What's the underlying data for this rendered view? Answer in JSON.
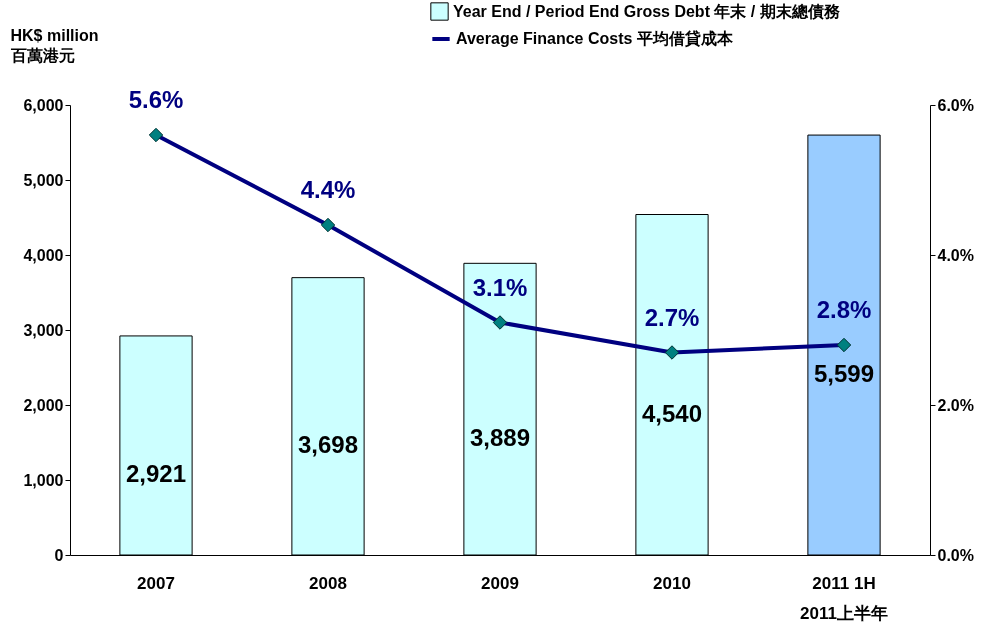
{
  "chart_data": {
    "type": "bar",
    "categories": [
      "2007",
      "2008",
      "2009",
      "2010",
      "2011 1H\n2011上半年"
    ],
    "ylabel": "HK$ million\n百萬港元",
    "ylim": [
      0,
      6000
    ],
    "yticks": [
      {
        "value": 0,
        "label": "0"
      },
      {
        "value": 1000,
        "label": "1,000"
      },
      {
        "value": 2000,
        "label": "2,000"
      },
      {
        "value": 3000,
        "label": "3,000"
      },
      {
        "value": 4000,
        "label": "4,000"
      },
      {
        "value": 5000,
        "label": "5,000"
      },
      {
        "value": 6000,
        "label": "6,000"
      }
    ],
    "y2lim": [
      0,
      6
    ],
    "y2ticks": [
      {
        "value": 0,
        "label": "0.0%"
      },
      {
        "value": 2,
        "label": "2.0%"
      },
      {
        "value": 4,
        "label": "4.0%"
      },
      {
        "value": 6,
        "label": "6.0%"
      }
    ],
    "series": [
      {
        "name": "Year End / Period End Gross Debt 年末 / 期末總債務",
        "colors": [
          "#ccffff",
          "#ccffff",
          "#ccffff",
          "#ccffff",
          "#99ccff"
        ],
        "values": [
          2921,
          3698,
          3889,
          4540,
          5599
        ],
        "value_labels": [
          "2,921",
          "3,698",
          "3,889",
          "4,540",
          "5,599"
        ]
      },
      {
        "name": "Average Finance Costs 平均借貸成本",
        "type": "line",
        "axis": "y2",
        "color": "#000080",
        "marker": "diamond",
        "values": [
          5.6,
          4.4,
          3.1,
          2.7,
          2.8
        ],
        "value_labels": [
          "5.6%",
          "4.4%",
          "3.1%",
          "2.7%",
          "2.8%"
        ]
      }
    ],
    "legend": "top right",
    "grid": false
  }
}
